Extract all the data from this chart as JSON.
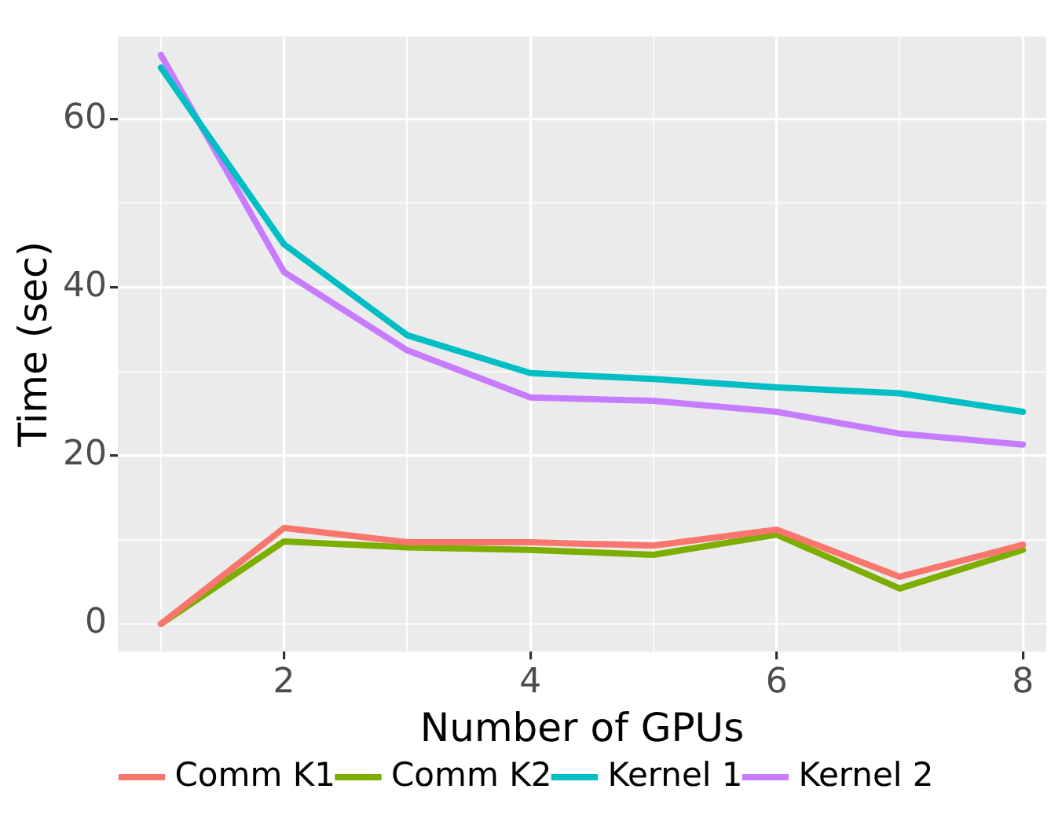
{
  "chart_data": {
    "type": "line",
    "xlabel": "Number of GPUs",
    "ylabel": "Time (sec)",
    "x": [
      1,
      2,
      3,
      4,
      5,
      6,
      7,
      8
    ],
    "series": [
      {
        "name": "Comm K1",
        "color": "#f8766d",
        "values": [
          0,
          11.4,
          9.7,
          9.7,
          9.3,
          11.2,
          5.6,
          9.4
        ]
      },
      {
        "name": "Comm K2",
        "color": "#7cae00",
        "values": [
          0,
          9.8,
          9.1,
          8.8,
          8.2,
          10.6,
          4.2,
          8.8
        ]
      },
      {
        "name": "Kernel 1",
        "color": "#00bfc4",
        "values": [
          66.1,
          45.1,
          34.3,
          29.8,
          29.1,
          28.1,
          27.4,
          25.2
        ]
      },
      {
        "name": "Kernel 2",
        "color": "#c77cff",
        "values": [
          67.6,
          41.8,
          32.5,
          26.9,
          26.5,
          25.2,
          22.6,
          21.3
        ]
      }
    ],
    "xlim": [
      0.65,
      8.19
    ],
    "ylim": [
      -3.3,
      69.8
    ],
    "xticks": [
      {
        "value": 1,
        "label": null
      },
      2,
      {
        "value": 3,
        "label": null
      },
      4,
      {
        "value": 5,
        "label": null
      },
      6,
      {
        "value": 7,
        "label": null
      },
      8
    ],
    "yticks": [
      0,
      {
        "value": 10,
        "label": null
      },
      20,
      {
        "value": 30,
        "label": null
      },
      40,
      {
        "value": 50,
        "label": null
      },
      60
    ],
    "grid": true,
    "legend": "bottom",
    "marker": "none",
    "line_style": "solid"
  }
}
